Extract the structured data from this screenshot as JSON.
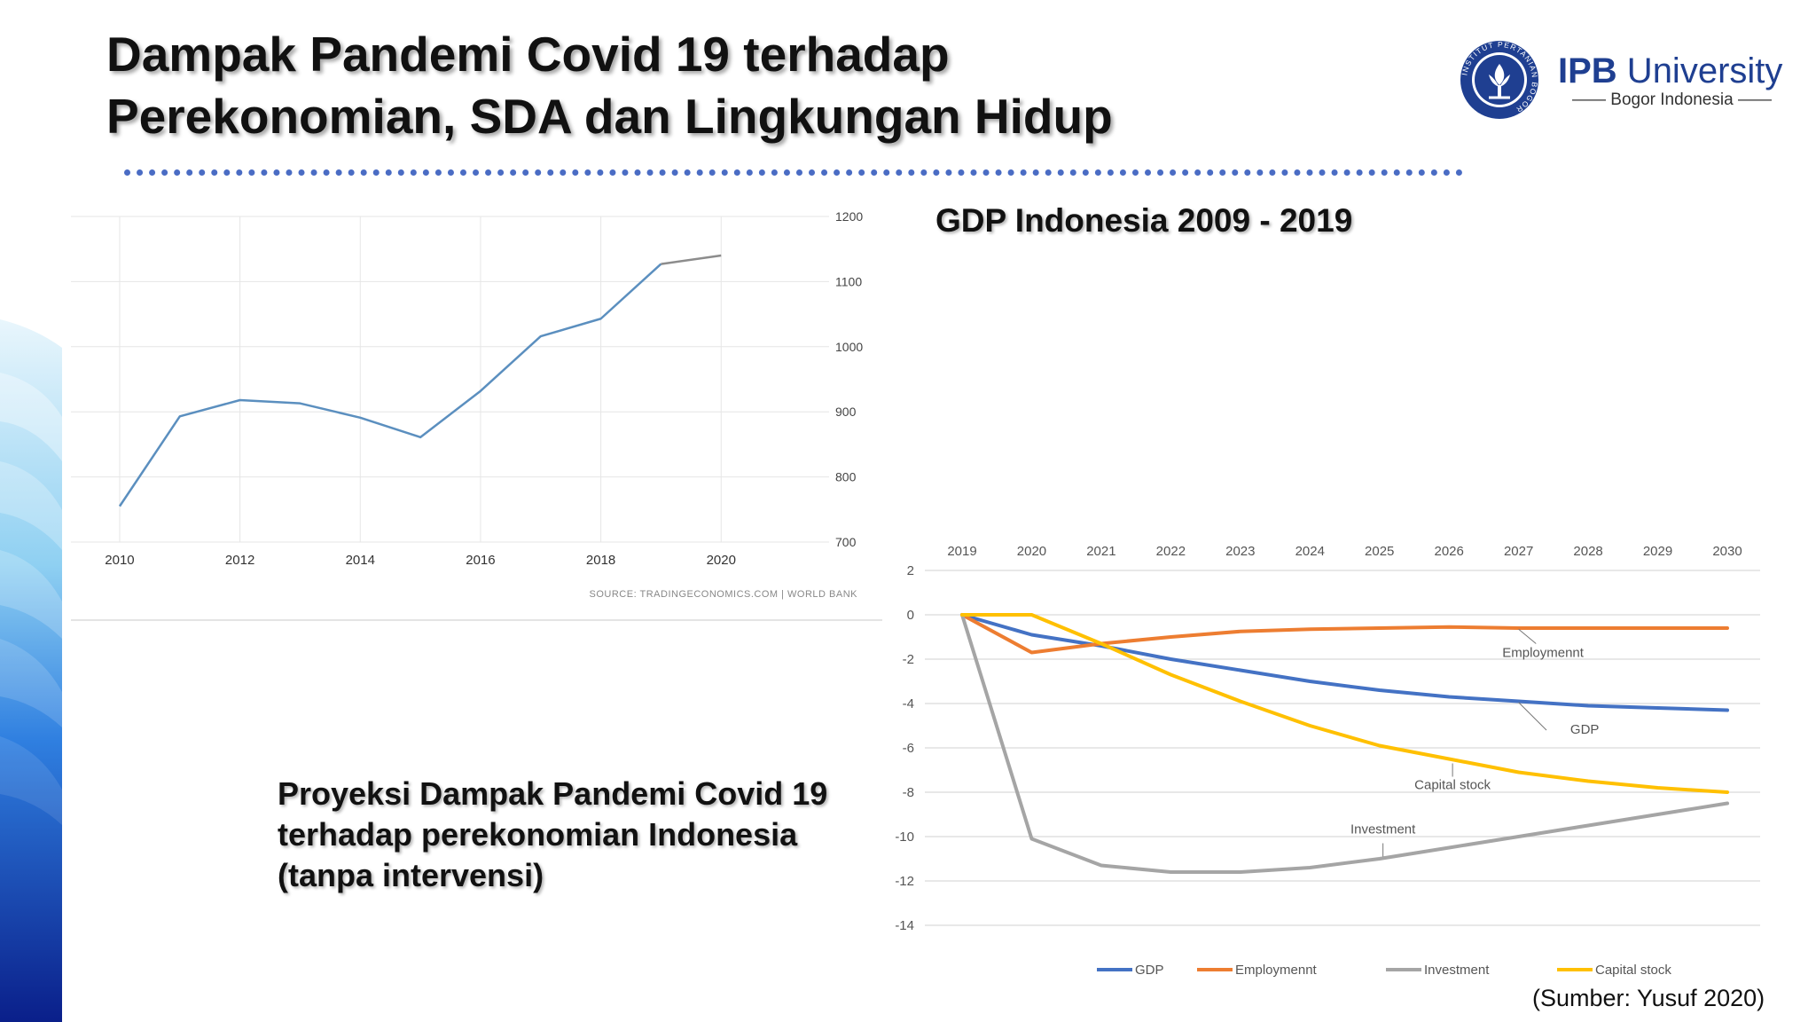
{
  "slide": {
    "title_line1": "Dampak Pandemi Covid 19 terhadap",
    "title_line2": "Perekonomian, SDA dan Lingkungan Hidup",
    "logo_name_bold": "IPB",
    "logo_name_rest": " University",
    "logo_sub": "Bogor Indonesia",
    "logo_seal_text": "INSTITUT PERTANIAN BOGOR",
    "gdp_heading": "GDP Indonesia 2009 - 2019",
    "projection_caption": "Proyeksi Dampak Pandemi Covid 19 terhadap perekonomian Indonesia (tanpa intervensi)",
    "source_note": "(Sumber: Yusuf 2020)",
    "colors": {
      "title_divider": "#4a6cc4",
      "logo_blue": "#1f3f91",
      "band_dark": "#0b2a8c",
      "band_light": "#7fc4f0"
    }
  },
  "chart_data": [
    {
      "type": "line",
      "title": "",
      "xlabel": "",
      "ylabel": "",
      "x": [
        2010,
        2011,
        2012,
        2013,
        2014,
        2015,
        2016,
        2017,
        2018,
        2019,
        2020
      ],
      "x_ticks": [
        "2010",
        "2012",
        "2014",
        "2016",
        "2018",
        "2020"
      ],
      "y_ticks": [
        "700",
        "800",
        "900",
        "1000",
        "1100",
        "1200"
      ],
      "xlim": [
        2009.75,
        2021.5
      ],
      "ylim": [
        700,
        1200
      ],
      "y_axis_side": "right",
      "grid": true,
      "source": "SOURCE: TRADINGECONOMICS.COM | WORLD BANK",
      "series": [
        {
          "values": [
            755,
            893,
            918,
            913,
            891,
            861,
            932,
            1016,
            1043,
            1127,
            1140
          ],
          "color": "#5b8fbf",
          "tail_color": "#8c8c8c"
        }
      ]
    },
    {
      "type": "line",
      "title": "",
      "xlabel": "",
      "ylabel": "",
      "categories": [
        "2019",
        "2020",
        "2021",
        "2022",
        "2023",
        "2024",
        "2025",
        "2026",
        "2027",
        "2028",
        "2029",
        "2030"
      ],
      "y_ticks": [
        "2",
        "0",
        "-2",
        "-4",
        "-6",
        "-8",
        "-10",
        "-12",
        "-14"
      ],
      "ylim": [
        -14,
        2
      ],
      "x_axis_position": "top",
      "grid": true,
      "legend": "bottom",
      "series": [
        {
          "name": "GDP",
          "color": "#4472c4",
          "values": [
            0,
            -0.9,
            -1.4,
            -2.0,
            -2.5,
            -3.0,
            -3.4,
            -3.7,
            -3.9,
            -4.1,
            -4.2,
            -4.3
          ]
        },
        {
          "name": "Employmennt",
          "color": "#ed7d31",
          "values": [
            0,
            -1.7,
            -1.3,
            -1.0,
            -0.75,
            -0.65,
            -0.6,
            -0.55,
            -0.6,
            -0.6,
            -0.6,
            -0.6
          ]
        },
        {
          "name": "Investment",
          "color": "#a5a5a5",
          "values": [
            0,
            -10.1,
            -11.3,
            -11.6,
            -11.6,
            -11.4,
            -11.0,
            -10.5,
            -10.0,
            -9.5,
            -9.0,
            -8.5
          ]
        },
        {
          "name": "Capital stock",
          "color": "#ffc000",
          "values": [
            0,
            0,
            -1.3,
            -2.7,
            -3.9,
            -5.0,
            -5.9,
            -6.5,
            -7.1,
            -7.5,
            -7.8,
            -8.0
          ]
        }
      ],
      "annotations": [
        {
          "text": "Employmennt",
          "series": "Employmennt"
        },
        {
          "text": "GDP",
          "series": "GDP"
        },
        {
          "text": "Capital stock",
          "series": "Capital stock"
        },
        {
          "text": "Investment",
          "series": "Investment"
        }
      ]
    }
  ]
}
